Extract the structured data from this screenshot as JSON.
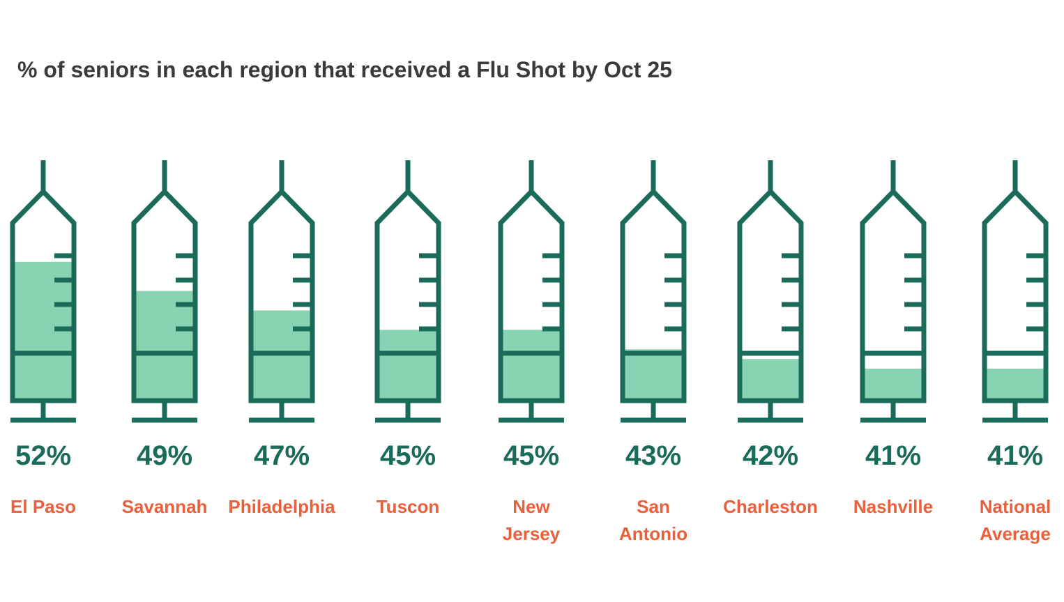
{
  "chart_data": {
    "type": "syringe",
    "title": "% of seniors in each region that received a Flu Shot by Oct 25",
    "categories": [
      "El Paso",
      "Savannah",
      "Philadelphia",
      "Tuscon",
      "New\nJersey",
      "San\nAntonio",
      "Charleston",
      "Nashville",
      "National\nAverage"
    ],
    "values": [
      52,
      49,
      47,
      45,
      45,
      43,
      42,
      41,
      41
    ],
    "value_labels": [
      "52%",
      "49%",
      "47%",
      "45%",
      "45%",
      "43%",
      "42%",
      "41%",
      "41%"
    ],
    "color": "#88d4b2",
    "ylim": [
      38,
      56
    ]
  }
}
